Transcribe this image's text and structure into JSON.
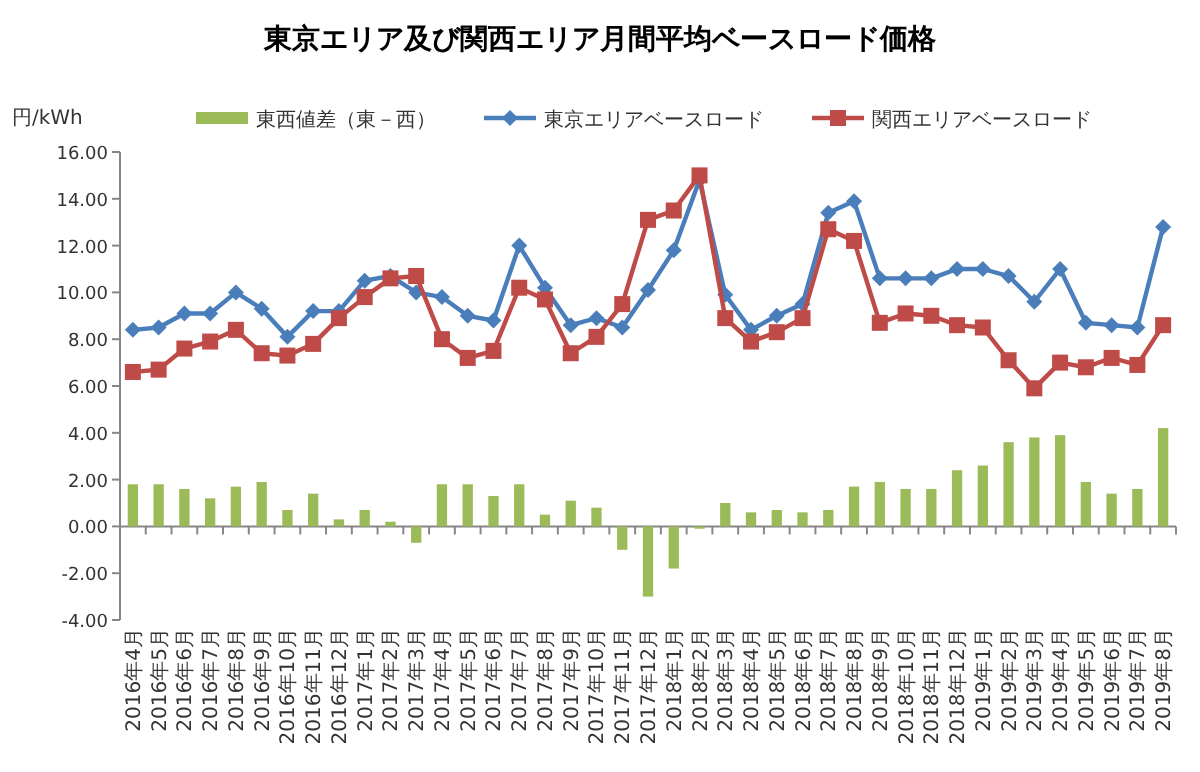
{
  "chart_data": {
    "type": "bar",
    "title": "東京エリア及び関西エリア月間平均ベースロード価格",
    "ylabel": "円/kWh",
    "categories": [
      "2016年4月",
      "2016年5月",
      "2016年6月",
      "2016年7月",
      "2016年8月",
      "2016年9月",
      "2016年10月",
      "2016年11月",
      "2016年12月",
      "2017年1月",
      "2017年2月",
      "2017年3月",
      "2017年4月",
      "2017年5月",
      "2017年6月",
      "2017年7月",
      "2017年8月",
      "2017年9月",
      "2017年10月",
      "2017年11月",
      "2017年12月",
      "2018年1月",
      "2018年2月",
      "2018年3月",
      "2018年4月",
      "2018年5月",
      "2018年6月",
      "2018年7月",
      "2018年8月",
      "2018年9月",
      "2018年10月",
      "2018年11月",
      "2018年12月",
      "2019年1月",
      "2019年2月",
      "2019年3月",
      "2019年4月",
      "2019年5月",
      "2019年6月",
      "2019年7月",
      "2019年8月"
    ],
    "series": [
      {
        "name": "東西値差（東－西）",
        "color": "#9bbb59",
        "values": [
          1.8,
          1.8,
          1.6,
          1.2,
          1.7,
          1.9,
          0.7,
          1.4,
          0.3,
          0.7,
          0.2,
          -0.7,
          1.8,
          1.8,
          1.3,
          1.8,
          0.5,
          1.1,
          0.8,
          -1.0,
          -3.0,
          -1.8,
          -0.1,
          1.0,
          0.6,
          0.7,
          0.6,
          0.7,
          1.7,
          1.9,
          1.6,
          1.6,
          2.4,
          2.6,
          3.6,
          3.8,
          3.9,
          1.9,
          1.4,
          1.6,
          4.2
        ]
      },
      {
        "name": "東京エリアベースロード",
        "type": "line",
        "marker": "diamond",
        "color": "#4a7ebb",
        "values": [
          8.4,
          8.5,
          9.1,
          9.1,
          10.0,
          9.3,
          8.1,
          9.2,
          9.2,
          10.5,
          10.7,
          10.0,
          9.8,
          9.0,
          8.8,
          12.0,
          10.2,
          8.6,
          8.9,
          8.5,
          10.1,
          11.8,
          14.8,
          9.9,
          8.4,
          9.0,
          9.5,
          13.4,
          13.9,
          10.6,
          10.6,
          10.6,
          11.0,
          11.0,
          10.7,
          9.6,
          11.0,
          8.7,
          8.6,
          8.5,
          12.8
        ]
      },
      {
        "name": "関西エリアベースロード",
        "type": "line",
        "marker": "square",
        "color": "#be4b48",
        "values": [
          6.6,
          6.7,
          7.6,
          7.9,
          8.4,
          7.4,
          7.3,
          7.8,
          8.9,
          9.8,
          10.6,
          10.7,
          8.0,
          7.2,
          7.5,
          10.2,
          9.7,
          7.4,
          8.1,
          9.5,
          13.1,
          13.5,
          15.0,
          8.9,
          7.9,
          8.3,
          8.9,
          12.7,
          12.2,
          8.7,
          9.1,
          9.0,
          8.6,
          8.5,
          7.1,
          5.9,
          7.0,
          6.8,
          7.2,
          6.9,
          8.6
        ]
      }
    ],
    "ylim": [
      -4,
      16
    ],
    "yticks": [
      {
        "value": -4,
        "label": "-4.00"
      },
      {
        "value": -2,
        "label": "-2.00"
      },
      {
        "value": 0,
        "label": "0.00"
      },
      {
        "value": 2,
        "label": "2.00"
      },
      {
        "value": 4,
        "label": "4.00"
      },
      {
        "value": 6,
        "label": "6.00"
      },
      {
        "value": 8,
        "label": "8.00"
      },
      {
        "value": 10,
        "label": "10.00"
      },
      {
        "value": 12,
        "label": "12.00"
      },
      {
        "value": 14,
        "label": "14.00"
      },
      {
        "value": 16,
        "label": "16.00"
      }
    ],
    "legend": "top"
  }
}
